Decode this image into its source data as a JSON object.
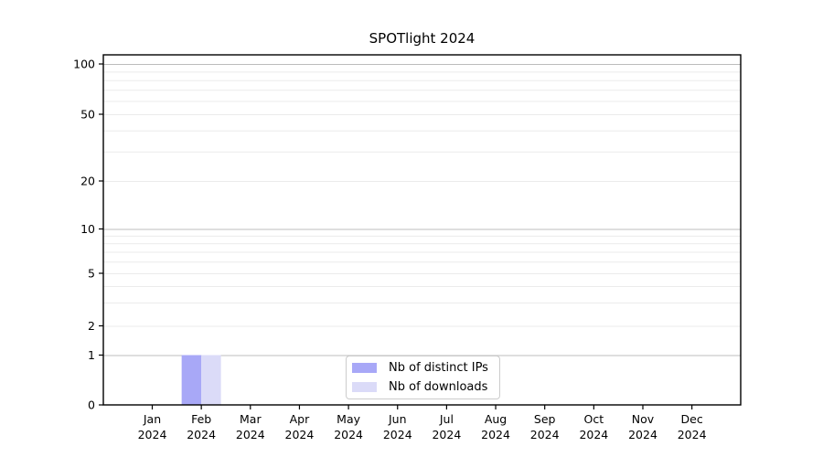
{
  "chart_data": {
    "type": "bar",
    "title": "SPOTlight 2024",
    "categories": [
      {
        "label": "Jan",
        "sub": "2024"
      },
      {
        "label": "Feb",
        "sub": "2024"
      },
      {
        "label": "Mar",
        "sub": "2024"
      },
      {
        "label": "Apr",
        "sub": "2024"
      },
      {
        "label": "May",
        "sub": "2024"
      },
      {
        "label": "Jun",
        "sub": "2024"
      },
      {
        "label": "Jul",
        "sub": "2024"
      },
      {
        "label": "Aug",
        "sub": "2024"
      },
      {
        "label": "Sep",
        "sub": "2024"
      },
      {
        "label": "Oct",
        "sub": "2024"
      },
      {
        "label": "Nov",
        "sub": "2024"
      },
      {
        "label": "Dec",
        "sub": "2024"
      }
    ],
    "series": [
      {
        "name": "Nb of distinct IPs",
        "color": "#a8a8f7",
        "values": [
          0,
          1,
          0,
          0,
          0,
          0,
          0,
          0,
          0,
          0,
          0,
          0
        ]
      },
      {
        "name": "Nb of downloads",
        "color": "#dbdbf8",
        "values": [
          0,
          1,
          0,
          0,
          0,
          0,
          0,
          0,
          0,
          0,
          0,
          0
        ]
      }
    ],
    "xlabel": "",
    "ylabel": "",
    "y_axis": {
      "scale": "symlog",
      "tick_values": [
        0,
        1,
        2,
        5,
        10,
        20,
        50,
        100
      ],
      "tick_labels": [
        "0",
        "1",
        "2",
        "5",
        "10",
        "20",
        "50",
        "100"
      ],
      "major_gridline_values": [
        1,
        10,
        100
      ],
      "light_gridline_values": [
        2,
        5,
        20,
        50
      ],
      "minor_gridline_values": [
        3,
        4,
        6,
        7,
        8,
        9,
        30,
        40,
        60,
        70,
        80,
        90
      ],
      "ylim": [
        0,
        110
      ]
    },
    "grid": true,
    "legend_position": "lower center",
    "colors": {
      "grid_major": "#bcbcbc",
      "grid_minor": "#ebebeb",
      "axis": "#000000",
      "legend_border": "#cccccc"
    }
  }
}
